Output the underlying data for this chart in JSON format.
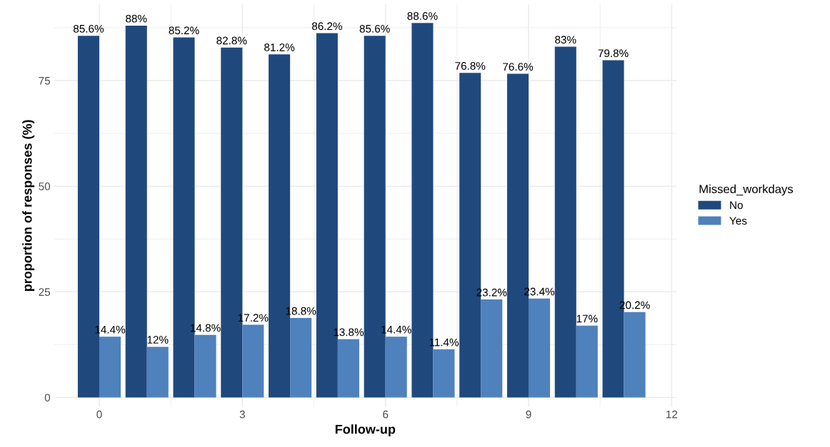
{
  "chart_data": {
    "type": "bar",
    "xlabel": "Follow-up",
    "ylabel": "proportion of responses (%)",
    "legend_title": "Missed_workdays",
    "legend": "right",
    "grid": true,
    "x": [
      0,
      1,
      2,
      3,
      4,
      5,
      6,
      7,
      8,
      9,
      10,
      11
    ],
    "series": [
      {
        "name": "No",
        "color": "#1f497d",
        "values": [
          85.6,
          88,
          85.2,
          82.8,
          81.2,
          86.2,
          85.6,
          88.6,
          76.8,
          76.6,
          83,
          79.8
        ],
        "value_labels": [
          "85.6%",
          "88%",
          "85.2%",
          "82.8%",
          "81.2%",
          "86.2%",
          "85.6%",
          "88.6%",
          "76.8%",
          "76.6%",
          "83%",
          "79.8%"
        ]
      },
      {
        "name": "Yes",
        "color": "#4f81bd",
        "values": [
          14.4,
          12,
          14.8,
          17.2,
          18.8,
          13.8,
          14.4,
          11.4,
          23.2,
          23.4,
          17,
          20.2
        ],
        "value_labels": [
          "14.4%",
          "12%",
          "14.8%",
          "17.2%",
          "18.8%",
          "13.8%",
          "14.4%",
          "11.4%",
          "23.2%",
          "23.4%",
          "17%",
          "20.2%"
        ]
      }
    ],
    "xlim": [
      -0.95,
      12.1
    ],
    "xticks": [
      0,
      3,
      6,
      9,
      12
    ],
    "ylim": [
      -2.2,
      93
    ],
    "yticks": [
      0,
      25,
      50,
      75
    ]
  }
}
